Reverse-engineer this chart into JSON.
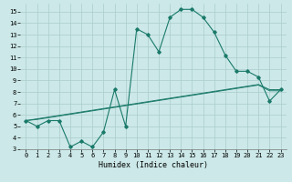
{
  "title": "",
  "xlabel": "Humidex (Indice chaleur)",
  "bg_color": "#cce8e8",
  "grid_color": "#aacccc",
  "line_color": "#1a7a6a",
  "x_data": [
    0,
    1,
    2,
    3,
    4,
    5,
    6,
    7,
    8,
    9,
    10,
    11,
    12,
    13,
    14,
    15,
    16,
    17,
    18,
    19,
    20,
    21,
    22,
    23
  ],
  "y_main": [
    5.5,
    5.0,
    5.5,
    5.5,
    3.2,
    3.7,
    3.2,
    4.5,
    8.2,
    5.0,
    13.5,
    13.0,
    11.5,
    14.5,
    15.2,
    15.2,
    14.5,
    13.2,
    11.2,
    9.8,
    9.8,
    9.3,
    7.2,
    8.2
  ],
  "y_linear1": [
    5.5,
    5.6,
    5.75,
    5.9,
    6.05,
    6.2,
    6.35,
    6.5,
    6.65,
    6.8,
    6.95,
    7.1,
    7.25,
    7.4,
    7.55,
    7.7,
    7.85,
    8.0,
    8.15,
    8.3,
    8.45,
    8.6,
    8.1,
    8.1
  ],
  "y_linear2": [
    5.5,
    5.65,
    5.8,
    5.95,
    6.1,
    6.25,
    6.4,
    6.55,
    6.7,
    6.85,
    7.0,
    7.15,
    7.3,
    7.45,
    7.6,
    7.75,
    7.9,
    8.05,
    8.2,
    8.35,
    8.5,
    8.65,
    8.2,
    8.2
  ],
  "xlim": [
    -0.5,
    23.5
  ],
  "ylim": [
    3,
    15.7
  ],
  "yticks": [
    3,
    4,
    5,
    6,
    7,
    8,
    9,
    10,
    11,
    12,
    13,
    14,
    15
  ],
  "xticks": [
    0,
    1,
    2,
    3,
    4,
    5,
    6,
    7,
    8,
    9,
    10,
    11,
    12,
    13,
    14,
    15,
    16,
    17,
    18,
    19,
    20,
    21,
    22,
    23
  ],
  "figsize": [
    3.2,
    2.0
  ],
  "dpi": 100
}
